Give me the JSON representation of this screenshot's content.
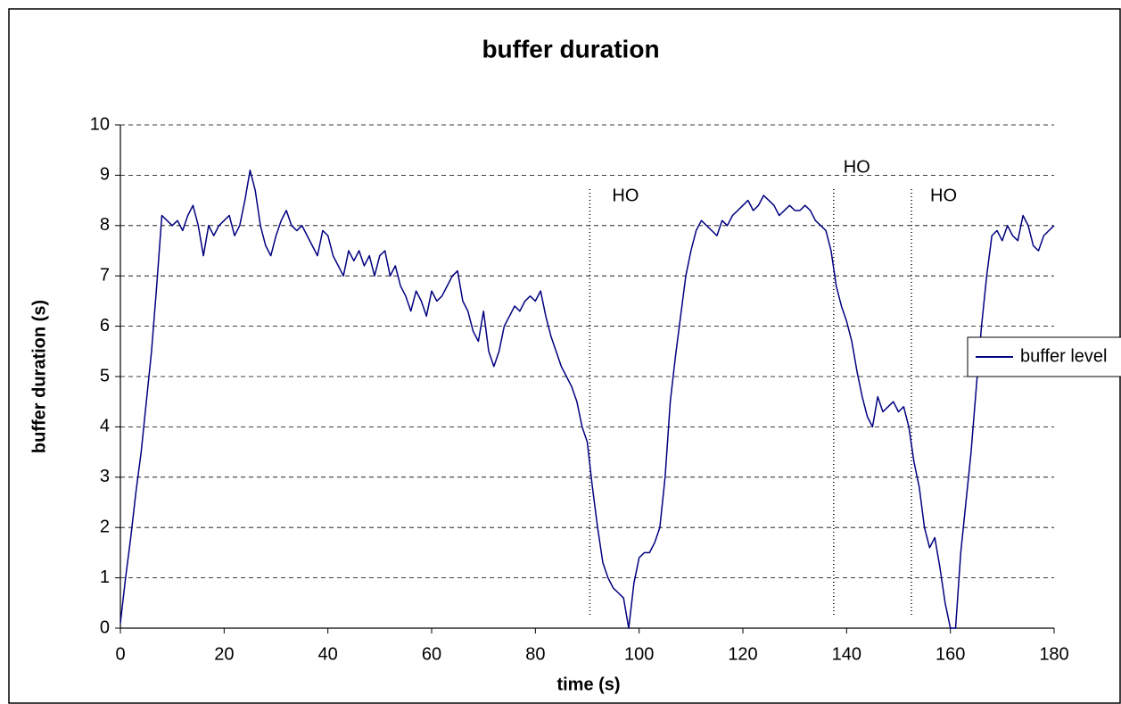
{
  "chart_data": {
    "type": "line",
    "title": "buffer duration",
    "x_label": "time (s)",
    "y_label": "buffer duration (s)",
    "xlim": [
      0,
      180
    ],
    "xticks": [
      0,
      20,
      40,
      60,
      80,
      100,
      120,
      140,
      160,
      180
    ],
    "ylim": [
      0,
      10
    ],
    "yticks": [
      0,
      1,
      2,
      3,
      4,
      5,
      6,
      7,
      8,
      9,
      10
    ],
    "grid": true,
    "legend": "right",
    "markers": [
      {
        "x": 90.5,
        "label": "HO"
      },
      {
        "x": 137.5,
        "label": "HO"
      },
      {
        "x": 152.5,
        "label": "HO"
      }
    ],
    "x": [
      0,
      1,
      2,
      3,
      4,
      5,
      6,
      7,
      8,
      9,
      10,
      11,
      12,
      13,
      14,
      15,
      16,
      17,
      18,
      19,
      20,
      21,
      22,
      23,
      24,
      25,
      26,
      27,
      28,
      29,
      30,
      31,
      32,
      33,
      34,
      35,
      36,
      37,
      38,
      39,
      40,
      41,
      42,
      43,
      44,
      45,
      46,
      47,
      48,
      49,
      50,
      51,
      52,
      53,
      54,
      55,
      56,
      57,
      58,
      59,
      60,
      61,
      62,
      63,
      64,
      65,
      66,
      67,
      68,
      69,
      70,
      71,
      72,
      73,
      74,
      75,
      76,
      77,
      78,
      79,
      80,
      81,
      82,
      83,
      84,
      85,
      86,
      87,
      88,
      89,
      90,
      91,
      92,
      93,
      94,
      95,
      96,
      97,
      98,
      99,
      100,
      101,
      102,
      103,
      104,
      105,
      106,
      107,
      108,
      109,
      110,
      111,
      112,
      113,
      114,
      115,
      116,
      117,
      118,
      119,
      120,
      121,
      122,
      123,
      124,
      125,
      126,
      127,
      128,
      129,
      130,
      131,
      132,
      133,
      134,
      135,
      136,
      137,
      138,
      139,
      140,
      141,
      142,
      143,
      144,
      145,
      146,
      147,
      148,
      149,
      150,
      151,
      152,
      153,
      154,
      155,
      156,
      157,
      158,
      159,
      160,
      161,
      162,
      163,
      164,
      165,
      166,
      167,
      168,
      169,
      170,
      171,
      172,
      173,
      174,
      175,
      176,
      177,
      178,
      179,
      180
    ],
    "series": [
      {
        "name": "buffer level",
        "color": "#000080",
        "values": [
          0.1,
          1.0,
          1.8,
          2.7,
          3.5,
          4.5,
          5.5,
          6.8,
          8.2,
          8.1,
          8.0,
          8.1,
          7.9,
          8.2,
          8.4,
          8.0,
          7.4,
          8.0,
          7.8,
          8.0,
          8.1,
          8.2,
          7.8,
          8.0,
          8.5,
          9.1,
          8.7,
          8.0,
          7.6,
          7.4,
          7.8,
          8.1,
          8.3,
          8.0,
          7.9,
          8.0,
          7.8,
          7.6,
          7.4,
          7.9,
          7.8,
          7.4,
          7.2,
          7.0,
          7.5,
          7.3,
          7.5,
          7.2,
          7.4,
          7.0,
          7.4,
          7.5,
          7.0,
          7.2,
          6.8,
          6.6,
          6.3,
          6.7,
          6.5,
          6.2,
          6.7,
          6.5,
          6.6,
          6.8,
          7.0,
          7.1,
          6.5,
          6.3,
          5.9,
          5.7,
          6.3,
          5.5,
          5.2,
          5.5,
          6.0,
          6.2,
          6.4,
          6.3,
          6.5,
          6.6,
          6.5,
          6.7,
          6.2,
          5.8,
          5.5,
          5.2,
          5.0,
          4.8,
          4.5,
          4.0,
          3.7,
          2.8,
          2.0,
          1.3,
          1.0,
          0.8,
          0.7,
          0.6,
          0,
          0.9,
          1.4,
          1.5,
          1.5,
          1.7,
          2.0,
          3.0,
          4.5,
          5.4,
          6.2,
          7.0,
          7.5,
          7.9,
          8.1,
          8.0,
          7.9,
          7.8,
          8.1,
          8.0,
          8.2,
          8.3,
          8.4,
          8.5,
          8.3,
          8.4,
          8.6,
          8.5,
          8.4,
          8.2,
          8.3,
          8.4,
          8.3,
          8.3,
          8.4,
          8.3,
          8.1,
          8.0,
          7.9,
          7.5,
          6.8,
          6.4,
          6.1,
          5.7,
          5.1,
          4.6,
          4.2,
          4.0,
          4.6,
          4.3,
          4.4,
          4.5,
          4.3,
          4.4,
          4.0,
          3.3,
          2.8,
          2.0,
          1.6,
          1.8,
          1.2,
          0.5,
          0,
          0,
          1.5,
          2.5,
          3.5,
          4.8,
          6.0,
          7.0,
          7.8,
          7.9,
          7.7,
          8.0,
          7.8,
          7.7,
          8.2,
          8.0,
          7.6,
          7.5,
          7.8,
          7.9,
          8.0
        ]
      }
    ]
  }
}
